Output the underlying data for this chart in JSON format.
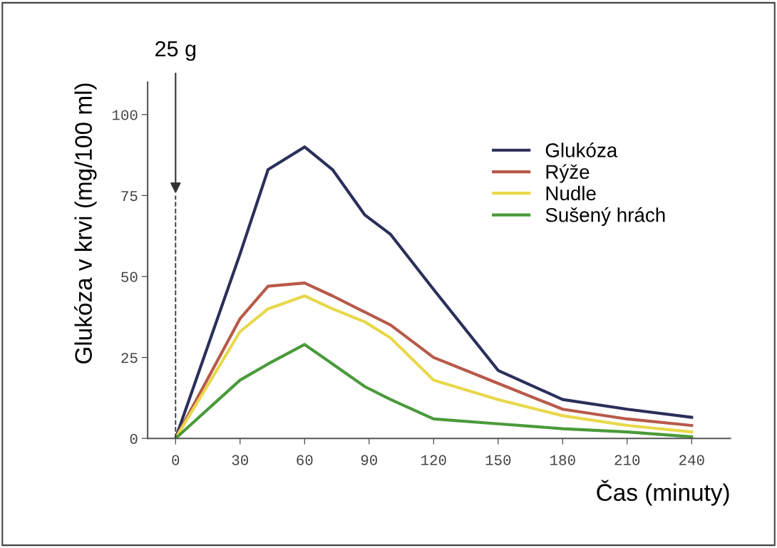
{
  "chart_data": {
    "type": "line",
    "xlabel": "Čas (minuty)",
    "ylabel": "Glukóza v krvi (mg/100 ml)",
    "x": [
      0,
      30,
      43,
      60,
      73,
      88,
      100,
      120,
      150,
      180,
      210,
      240
    ],
    "series": [
      {
        "name": "Glukóza",
        "color": "#2b2f5a",
        "values": [
          0,
          57,
          83,
          90,
          83,
          69,
          63,
          46,
          21,
          12,
          9,
          6.5
        ]
      },
      {
        "name": "Rýže",
        "color": "#b85a4a",
        "values": [
          0,
          37,
          47,
          48,
          44,
          39,
          35,
          25,
          17,
          9,
          6,
          4
        ]
      },
      {
        "name": "Nudle",
        "color": "#e8d84a",
        "values": [
          0,
          33,
          40,
          44,
          40,
          36,
          31,
          18,
          12,
          7,
          4,
          2
        ]
      },
      {
        "name": "Sušený hrách",
        "color": "#4a9a3a",
        "values": [
          0,
          18,
          23,
          29,
          23,
          16,
          12,
          6,
          4.5,
          3,
          2,
          0.5
        ]
      }
    ],
    "xlim": [
      -13,
      258
    ],
    "ylim": [
      0,
      110
    ],
    "xticks": [
      0,
      30,
      60,
      90,
      120,
      150,
      180,
      210,
      240
    ],
    "yticks": [
      0,
      25,
      50,
      75,
      100
    ],
    "ref_lines": [
      {
        "axis": "x",
        "value": 0,
        "label": "25 g",
        "line_style": "dashed",
        "color": "#333333"
      }
    ],
    "grid": false,
    "legend": "top right",
    "marker": "none",
    "line_style": "solid"
  }
}
